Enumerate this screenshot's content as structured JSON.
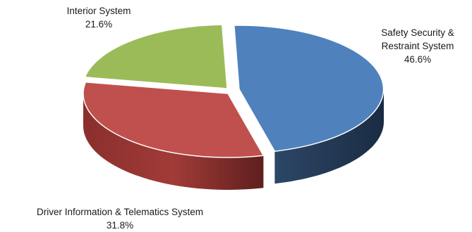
{
  "chart_data": {
    "type": "pie",
    "style": "3d-exploded",
    "slices": [
      {
        "label": "Safety Security & Restraint System",
        "label_lines": [
          "Safety Security &",
          "Restraint System"
        ],
        "value": 46.6,
        "value_text": "46.6%",
        "color": "#4F81BD"
      },
      {
        "label": "Driver Information & Telematics System",
        "label_lines": [
          "Driver Information & Telematics System"
        ],
        "value": 31.8,
        "value_text": "31.8%",
        "color": "#C0504D"
      },
      {
        "label": "Interior System",
        "label_lines": [
          "Interior System"
        ],
        "value": 21.6,
        "value_text": "21.6%",
        "color": "#9BBB59"
      }
    ]
  }
}
